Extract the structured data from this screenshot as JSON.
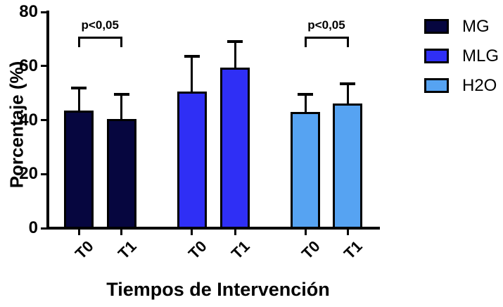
{
  "chart_data": {
    "type": "bar",
    "title": "",
    "xlabel": "Tiempos de Intervención",
    "ylabel": "Porcentaje (%)",
    "ylim": [
      0,
      80
    ],
    "yticks": [
      0,
      20,
      40,
      60,
      80
    ],
    "grid": false,
    "background_color": "#ffffff",
    "axis_color": "#000000",
    "categories": [
      "T0",
      "T1"
    ],
    "series": [
      {
        "name": "MG",
        "color": "#06063f",
        "values": [
          43.5,
          40.5
        ],
        "errors_plus": [
          9,
          9.5
        ]
      },
      {
        "name": "MLG",
        "color": "#2f2ff5",
        "values": [
          50.5,
          59.5
        ],
        "errors_plus": [
          13.5,
          10
        ]
      },
      {
        "name": "H2O",
        "color": "#56a3f2",
        "values": [
          43,
          46
        ],
        "errors_plus": [
          7,
          8
        ]
      }
    ],
    "annotations": [
      {
        "text": "p<0,05",
        "group_index": 0
      },
      {
        "text": "p<0,05",
        "group_index": 2
      }
    ],
    "legend": {
      "position": "right",
      "entries": [
        {
          "label": "MG",
          "color": "#06063f"
        },
        {
          "label": "MLG",
          "color": "#2f2ff5"
        },
        {
          "label": "H2O",
          "color": "#56a3f2"
        }
      ]
    }
  }
}
